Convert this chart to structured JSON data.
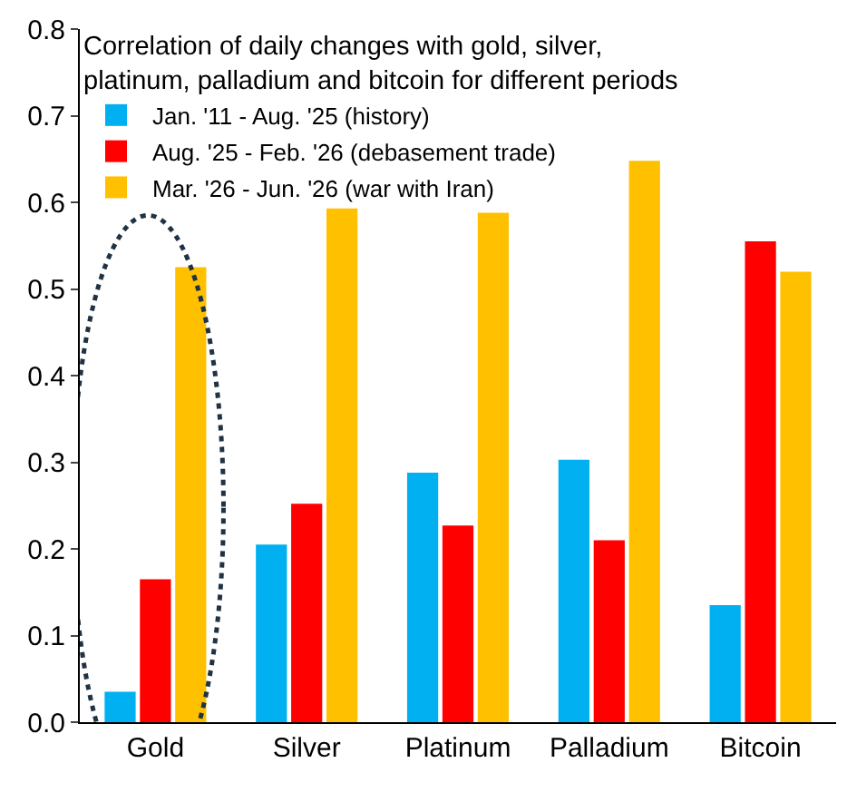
{
  "chart_data": {
    "type": "bar",
    "title": "Correlation of daily changes with gold, silver,\nplatinum, palladium and bitcoin for different periods",
    "categories": [
      "Gold",
      "Silver",
      "Platinum",
      "Palladium",
      "Bitcoin"
    ],
    "series": [
      {
        "name": "Jan. '11 - Aug. '25 (history)",
        "color": "#00b0f0",
        "values": [
          0.035,
          0.205,
          0.288,
          0.303,
          0.135
        ]
      },
      {
        "name": "Aug. '25 - Feb. '26 (debasement trade)",
        "color": "#ff0000",
        "values": [
          0.165,
          0.252,
          0.227,
          0.21,
          0.555
        ]
      },
      {
        "name": "Mar. '26 - Jun. '26 (war with Iran)",
        "color": "#ffc000",
        "values": [
          0.525,
          0.593,
          0.588,
          0.648,
          0.52
        ]
      }
    ],
    "ylim": [
      0,
      0.8
    ],
    "yticks": [
      {
        "value": 0,
        "label": "0.0"
      },
      0.1,
      0.2,
      0.3,
      0.4,
      0.5,
      0.6,
      0.7,
      0.8
    ],
    "legend": "top left"
  }
}
